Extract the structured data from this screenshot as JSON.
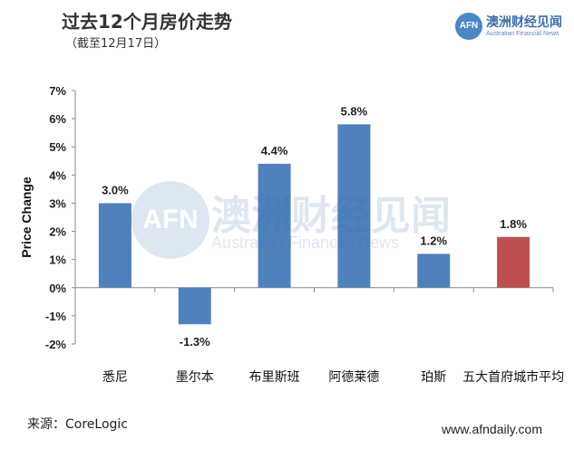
{
  "header": {
    "title": "过去12个月房价走势",
    "subtitle": "（截至12月17日）"
  },
  "logo": {
    "mark": "AFN",
    "name_cn": "澳洲财经见闻",
    "name_en": "Australian Financial News"
  },
  "watermark": {
    "mark": "AFN",
    "name_cn": "澳洲财经见闻",
    "name_en": "Australian Financial News"
  },
  "footer": {
    "source": "来源：CoreLogic",
    "site": "www.afndaily.com"
  },
  "colors": {
    "primary_bar": "#4f81bd",
    "highlight_bar": "#c0504d"
  },
  "chart_data": {
    "type": "bar",
    "title": "过去12个月房价走势",
    "subtitle": "（截至12月17日）",
    "xlabel": "",
    "ylabel": "Price Change",
    "categories": [
      "悉尼",
      "墨尔本",
      "布里斯班",
      "阿德莱德",
      "珀斯",
      "五大首府城市平均"
    ],
    "values": [
      3.0,
      -1.3,
      4.4,
      5.8,
      1.2,
      1.8
    ],
    "data_labels": [
      "3.0%",
      "-1.3%",
      "4.4%",
      "5.8%",
      "1.2%",
      "1.8%"
    ],
    "highlight_index": 5,
    "ylim": [
      -2,
      7
    ],
    "yticks": [
      -2,
      -1,
      0,
      1,
      2,
      3,
      4,
      5,
      6,
      7
    ],
    "ytick_labels": [
      "-2%",
      "-1%",
      "0%",
      "1%",
      "2%",
      "3%",
      "4%",
      "5%",
      "6%",
      "7%"
    ],
    "grid": false,
    "legend": "none"
  }
}
